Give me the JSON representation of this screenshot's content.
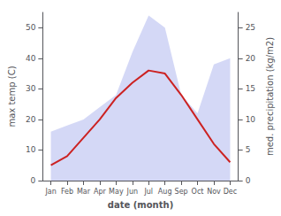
{
  "chart_data": {
    "type": "line",
    "xlabel": "date (month)",
    "ylabel": "max temp (C)",
    "y2label": "med. precipitation (kg/m2)",
    "categories": [
      "Jan",
      "Feb",
      "Mar",
      "Apr",
      "May",
      "Jun",
      "Jul",
      "Aug",
      "Sep",
      "Oct",
      "Nov",
      "Dec"
    ],
    "series": [
      {
        "type": "area",
        "color": "#b0b8ee",
        "axis": "y2",
        "values": [
          8,
          9,
          10,
          12,
          14,
          21,
          27,
          25,
          14,
          11,
          19,
          20
        ]
      },
      {
        "type": "line",
        "color": "#cc2222",
        "values": [
          5,
          8,
          14,
          20,
          27,
          32,
          36,
          35,
          28,
          20,
          12,
          6
        ]
      }
    ],
    "ylim": [
      0,
      55
    ],
    "yticks": [
      0,
      10,
      20,
      30,
      40,
      50
    ],
    "y2lim": [
      0,
      27.5
    ],
    "y2ticks": [
      0,
      5,
      10,
      15,
      20,
      25
    ],
    "grid": false
  }
}
